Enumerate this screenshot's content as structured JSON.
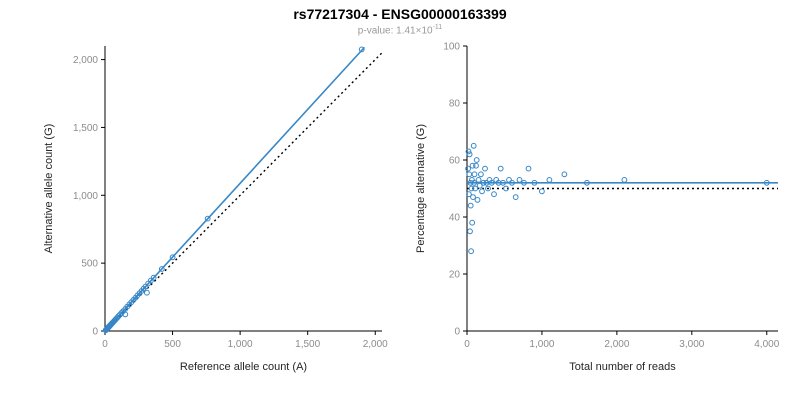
{
  "header": {
    "title": "rs77217304 - ENSG00000163399",
    "pvalue_prefix": "p-value: 1.41×10",
    "pvalue_exponent": "-11"
  },
  "colors": {
    "points_and_fit": "#3787c8",
    "reference_line": "#000000",
    "axis_line": "#000000",
    "tick_label": "#8c8c8c",
    "axis_title": "#262626"
  },
  "chart_data": [
    {
      "type": "scatter",
      "title": "",
      "xlabel": "Reference allele count (A)",
      "ylabel": "Alternative allele count (G)",
      "xlim": [
        0,
        2050
      ],
      "ylim": [
        0,
        2100
      ],
      "grid": false,
      "legend": "none",
      "xticks": [
        0,
        500,
        1000,
        1500,
        2000
      ],
      "xtick_labels": [
        "0",
        "500",
        "1,000",
        "1,500",
        "2,000"
      ],
      "yticks": [
        0,
        500,
        1000,
        1500,
        2000
      ],
      "ytick_labels": [
        "0",
        "500",
        "1,000",
        "1,500",
        "2,000"
      ],
      "color": "#3787c8",
      "fit_line": {
        "x1": 0,
        "y1": 0,
        "x2": 1920,
        "y2": 2090
      },
      "reference_line": {
        "x1": 0,
        "y1": 0,
        "x2": 2050,
        "y2": 2050
      },
      "points": [
        [
          5,
          6
        ],
        [
          8,
          8
        ],
        [
          10,
          12
        ],
        [
          12,
          13
        ],
        [
          15,
          17
        ],
        [
          18,
          19
        ],
        [
          20,
          23
        ],
        [
          22,
          24
        ],
        [
          25,
          28
        ],
        [
          28,
          30
        ],
        [
          30,
          34
        ],
        [
          33,
          35
        ],
        [
          36,
          40
        ],
        [
          40,
          43
        ],
        [
          44,
          48
        ],
        [
          48,
          52
        ],
        [
          52,
          57
        ],
        [
          57,
          62
        ],
        [
          62,
          67
        ],
        [
          68,
          74
        ],
        [
          75,
          82
        ],
        [
          82,
          89
        ],
        [
          90,
          98
        ],
        [
          100,
          109
        ],
        [
          110,
          120
        ],
        [
          122,
          133
        ],
        [
          135,
          147
        ],
        [
          150,
          122
        ],
        [
          150,
          163
        ],
        [
          165,
          180
        ],
        [
          180,
          196
        ],
        [
          195,
          212
        ],
        [
          210,
          229
        ],
        [
          225,
          245
        ],
        [
          240,
          262
        ],
        [
          255,
          278
        ],
        [
          270,
          295
        ],
        [
          285,
          312
        ],
        [
          300,
          328
        ],
        [
          310,
          282
        ],
        [
          320,
          350
        ],
        [
          340,
          372
        ],
        [
          360,
          393
        ],
        [
          420,
          457
        ],
        [
          500,
          543
        ],
        [
          760,
          828
        ],
        [
          1900,
          2075
        ]
      ]
    },
    {
      "type": "scatter",
      "title": "",
      "xlabel": "Total number of reads",
      "ylabel": "Percentage alternative (G)",
      "xlim": [
        0,
        4150
      ],
      "ylim": [
        0,
        100
      ],
      "grid": false,
      "legend": "none",
      "xticks": [
        0,
        1000,
        2000,
        3000,
        4000
      ],
      "xtick_labels": [
        "0",
        "1,000",
        "2,000",
        "3,000",
        "4,000"
      ],
      "yticks": [
        0,
        20,
        40,
        60,
        80,
        100
      ],
      "ytick_labels": [
        "0",
        "20",
        "40",
        "60",
        "80",
        "100"
      ],
      "color": "#3787c8",
      "fit_line": {
        "x1": 0,
        "y1": 52,
        "x2": 4150,
        "y2": 52
      },
      "reference_line": {
        "x1": 0,
        "y1": 50,
        "x2": 4150,
        "y2": 50
      },
      "points": [
        [
          15,
          57
        ],
        [
          20,
          63
        ],
        [
          25,
          48
        ],
        [
          30,
          55
        ],
        [
          35,
          62
        ],
        [
          40,
          35
        ],
        [
          45,
          52
        ],
        [
          50,
          44
        ],
        [
          55,
          28
        ],
        [
          60,
          50
        ],
        [
          65,
          53
        ],
        [
          70,
          38
        ],
        [
          75,
          58
        ],
        [
          80,
          47
        ],
        [
          90,
          65
        ],
        [
          95,
          52
        ],
        [
          100,
          55
        ],
        [
          110,
          50
        ],
        [
          120,
          58
        ],
        [
          130,
          60
        ],
        [
          140,
          46
        ],
        [
          155,
          53
        ],
        [
          170,
          51
        ],
        [
          185,
          55
        ],
        [
          200,
          49
        ],
        [
          220,
          52
        ],
        [
          240,
          57
        ],
        [
          260,
          52
        ],
        [
          280,
          50
        ],
        [
          300,
          53
        ],
        [
          330,
          52
        ],
        [
          360,
          48
        ],
        [
          390,
          53
        ],
        [
          420,
          52
        ],
        [
          450,
          57
        ],
        [
          480,
          52
        ],
        [
          520,
          50
        ],
        [
          560,
          53
        ],
        [
          600,
          52
        ],
        [
          650,
          47
        ],
        [
          700,
          53
        ],
        [
          760,
          52
        ],
        [
          820,
          57
        ],
        [
          900,
          52
        ],
        [
          1000,
          49
        ],
        [
          1100,
          53
        ],
        [
          1300,
          55
        ],
        [
          1600,
          52
        ],
        [
          2100,
          53
        ],
        [
          4000,
          52
        ]
      ]
    }
  ]
}
